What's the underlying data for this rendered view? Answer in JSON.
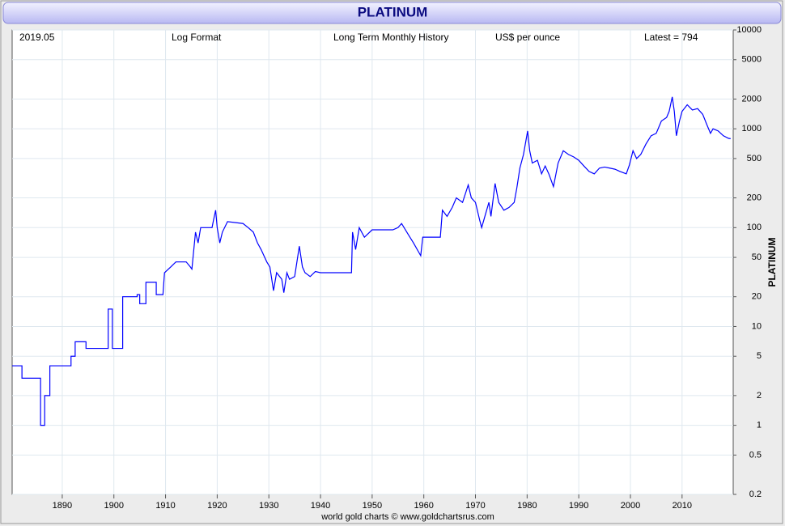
{
  "chart_data": {
    "type": "line",
    "title": "PLATINUM",
    "y_axis_label": "PLATINUM",
    "annotations": [
      "2019.05",
      "Log Format",
      "Long Term Monthly History",
      "US$ per ounce",
      "Latest = 794"
    ],
    "footer": "world gold charts © www.goldchartsrus.com",
    "log_y": true,
    "grid": true,
    "color": "#0000ff",
    "xlim": [
      1880.3,
      2019.9
    ],
    "ylim": [
      0.2,
      10000
    ],
    "xticks": [
      1890,
      1900,
      1910,
      1920,
      1930,
      1940,
      1950,
      1960,
      1970,
      1980,
      1990,
      2000,
      2010
    ],
    "yticks": [
      0.2,
      0.5,
      1,
      2,
      5,
      10,
      20,
      50,
      100,
      200,
      500,
      1000,
      2000,
      5000,
      10000
    ],
    "x": [
      1880.3,
      1882.2,
      1882.2,
      1885.8,
      1885.8,
      1886.6,
      1886.6,
      1887.6,
      1887.6,
      1891.7,
      1891.7,
      1892.5,
      1892.5,
      1894.6,
      1894.6,
      1898.9,
      1898.9,
      1899.7,
      1899.7,
      1901.7,
      1901.7,
      1904.5,
      1904.5,
      1905.0,
      1905.0,
      1906.2,
      1906.2,
      1908.2,
      1908.2,
      1909.5,
      1909.8,
      1911.0,
      1912.0,
      1914.0,
      1914.8,
      1915.1,
      1915.8,
      1916.3,
      1916.8,
      1919.0,
      1919.3,
      1919.7,
      1920.0,
      1920.5,
      1921.0,
      1922.0,
      1925.0,
      1926.0,
      1927.0,
      1927.8,
      1928.5,
      1929.6,
      1930.2,
      1930.9,
      1931.5,
      1932.5,
      1932.9,
      1933.5,
      1934.0,
      1935.0,
      1935.9,
      1936.5,
      1937.0,
      1938.0,
      1939.0,
      1940.0,
      1946.0,
      1946.2,
      1946.8,
      1947.5,
      1948.5,
      1950.0,
      1954.0,
      1955.0,
      1955.7,
      1957.0,
      1958.0,
      1959.4,
      1959.8,
      1963.2,
      1963.6,
      1964.5,
      1965.5,
      1966.3,
      1967.5,
      1968.6,
      1969.2,
      1970.0,
      1970.8,
      1971.2,
      1972.0,
      1972.6,
      1973.0,
      1973.8,
      1974.5,
      1975.5,
      1976.5,
      1977.5,
      1978.0,
      1978.6,
      1979.3,
      1980.1,
      1980.5,
      1981.0,
      1982.0,
      1982.8,
      1983.5,
      1984.2,
      1985.1,
      1986.0,
      1987.0,
      1988.0,
      1989.0,
      1990.0,
      1991.0,
      1992.0,
      1993.0,
      1994.0,
      1995.0,
      1996.0,
      1997.0,
      1998.0,
      1999.2,
      1999.8,
      2000.5,
      2001.2,
      2002.0,
      2003.0,
      2004.0,
      2005.0,
      2006.0,
      2007.0,
      2007.5,
      2008.1,
      2008.5,
      2008.9,
      2009.5,
      2010.0,
      2011.0,
      2012.0,
      2013.0,
      2014.0,
      2014.8,
      2015.5,
      2016.0,
      2017.0,
      2018.0,
      2019.0,
      2019.4
    ],
    "values": [
      4,
      4,
      3,
      3,
      1,
      1,
      2,
      2,
      4,
      4,
      5,
      5,
      7,
      7,
      6,
      6,
      15,
      15,
      6,
      6,
      20,
      20,
      21,
      21,
      17,
      17,
      28,
      28,
      21,
      21,
      35,
      40,
      45,
      45,
      40,
      38,
      90,
      70,
      100,
      100,
      120,
      150,
      100,
      70,
      90,
      115,
      110,
      100,
      90,
      70,
      60,
      45,
      40,
      23,
      35,
      30,
      22,
      35,
      30,
      32,
      65,
      40,
      35,
      32,
      36,
      35,
      35,
      90,
      60,
      100,
      80,
      95,
      95,
      100,
      110,
      85,
      70,
      52,
      80,
      80,
      150,
      130,
      160,
      200,
      180,
      270,
      200,
      180,
      120,
      100,
      140,
      180,
      130,
      280,
      180,
      150,
      160,
      180,
      250,
      400,
      550,
      950,
      600,
      450,
      480,
      350,
      420,
      350,
      260,
      450,
      600,
      550,
      520,
      480,
      420,
      370,
      350,
      400,
      410,
      400,
      390,
      370,
      350,
      430,
      600,
      500,
      550,
      700,
      850,
      900,
      1200,
      1300,
      1500,
      2100,
      1500,
      850,
      1200,
      1500,
      1750,
      1550,
      1600,
      1400,
      1100,
      900,
      1000,
      950,
      850,
      800,
      794
    ]
  }
}
